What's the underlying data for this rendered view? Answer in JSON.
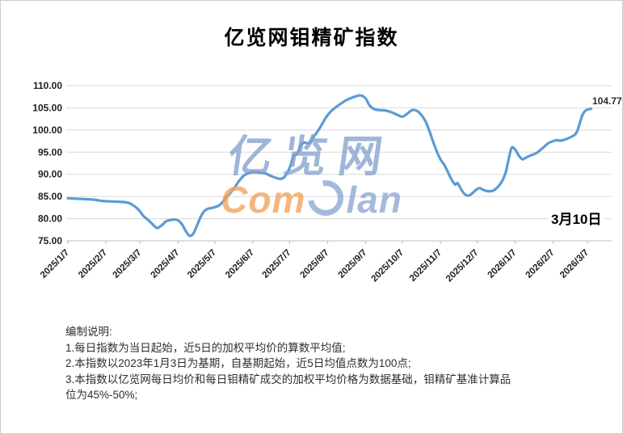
{
  "title": "亿览网钼精矿指数",
  "watermark": {
    "line1": "亿览网",
    "brand_com": "Com",
    "brand_lan": "lan",
    "e_icon": "comelan-e-swoosh"
  },
  "annotation_date": "3月10日",
  "notes": {
    "lines": [
      "编制说明:",
      "1.每日指数为当日起始，近5日的加权平均价的算数平均值;",
      "2.本指数以2023年1月3日为基期，自基期起始，近5日均值点数为100点;",
      "3.本指数以亿览网每日均价和每日钼精矿成交的加权平均价格为数据基础，钼精矿基准计算品",
      "位为45%-50%;"
    ]
  },
  "colors": {
    "line": "#5B9BD5",
    "gridline": "#D9D9D9",
    "axis": "#BFBFBF",
    "tick_label": "#1f1f1f",
    "watermark_blue": "rgba(143,168,212,0.8)",
    "watermark_orange": "rgba(243,163,94,0.8)"
  },
  "chart_data": {
    "type": "line",
    "title": "亿览网钼精矿指数",
    "xlabel": "",
    "ylabel": "",
    "ylim": [
      75,
      110
    ],
    "grid": "horizontal",
    "legend": "none",
    "line_color": "#5B9BD5",
    "smooth": true,
    "ytick_labels": [
      "110.00",
      "105.00",
      "100.00",
      "95.00",
      "90.00",
      "85.00",
      "80.00",
      "75.00"
    ],
    "ytick_values": [
      110,
      105,
      100,
      95,
      90,
      85,
      80,
      75
    ],
    "xticks": [
      "2025/1/7",
      "2025/2/7",
      "2025/3/7",
      "2025/4/7",
      "2025/5/7",
      "2025/6/7",
      "2025/7/7",
      "2025/8/7",
      "2025/9/7",
      "2025/10/7",
      "2025/11/7",
      "2025/12/7",
      "2026/1/7",
      "2026/2/7",
      "2026/3/7"
    ],
    "x_axis_start": "2025/1/7",
    "x_axis_end": "2026/3/7",
    "last_point_label": "104.77",
    "last_point_date": "3月10日",
    "series": [
      {
        "name": "钼精矿指数",
        "points": [
          [
            "2025/1/7",
            84.6
          ],
          [
            "2025/1/14",
            84.5
          ],
          [
            "2025/1/21",
            84.4
          ],
          [
            "2025/1/28",
            84.3
          ],
          [
            "2025/2/4",
            84.0
          ],
          [
            "2025/2/11",
            83.9
          ],
          [
            "2025/2/18",
            83.8
          ],
          [
            "2025/2/25",
            83.6
          ],
          [
            "2025/3/2",
            82.9
          ],
          [
            "2025/3/6",
            81.9
          ],
          [
            "2025/3/10",
            80.5
          ],
          [
            "2025/3/14",
            79.6
          ],
          [
            "2025/3/18",
            78.5
          ],
          [
            "2025/3/21",
            77.9
          ],
          [
            "2025/3/25",
            78.6
          ],
          [
            "2025/3/28",
            79.4
          ],
          [
            "2025/4/1",
            79.7
          ],
          [
            "2025/4/4",
            79.8
          ],
          [
            "2025/4/7",
            79.6
          ],
          [
            "2025/4/10",
            78.8
          ],
          [
            "2025/4/13",
            77.3
          ],
          [
            "2025/4/16",
            76.2
          ],
          [
            "2025/4/19",
            76.5
          ],
          [
            "2025/4/22",
            78.2
          ],
          [
            "2025/4/25",
            80.2
          ],
          [
            "2025/4/28",
            81.6
          ],
          [
            "2025/5/1",
            82.2
          ],
          [
            "2025/5/4",
            82.4
          ],
          [
            "2025/5/7",
            82.6
          ],
          [
            "2025/5/11",
            83.1
          ],
          [
            "2025/5/15",
            84.4
          ],
          [
            "2025/5/19",
            85.6
          ],
          [
            "2025/5/23",
            87.0
          ],
          [
            "2025/5/27",
            88.6
          ],
          [
            "2025/5/31",
            89.8
          ],
          [
            "2025/6/4",
            90.3
          ],
          [
            "2025/6/7",
            90.5
          ],
          [
            "2025/6/12",
            90.4
          ],
          [
            "2025/6/17",
            90.2
          ],
          [
            "2025/6/22",
            89.6
          ],
          [
            "2025/6/27",
            89.1
          ],
          [
            "2025/6/30",
            89.0
          ],
          [
            "2025/7/3",
            89.5
          ],
          [
            "2025/7/7",
            91.5
          ],
          [
            "2025/7/10",
            94.0
          ],
          [
            "2025/7/13",
            94.6
          ],
          [
            "2025/7/16",
            96.5
          ],
          [
            "2025/7/19",
            97.2
          ],
          [
            "2025/7/23",
            97.0
          ],
          [
            "2025/7/27",
            98.6
          ],
          [
            "2025/7/31",
            100.2
          ],
          [
            "2025/8/3",
            101.6
          ],
          [
            "2025/8/6",
            103.0
          ],
          [
            "2025/8/10",
            104.3
          ],
          [
            "2025/8/14",
            105.2
          ],
          [
            "2025/8/18",
            106.0
          ],
          [
            "2025/8/22",
            106.7
          ],
          [
            "2025/8/26",
            107.2
          ],
          [
            "2025/8/30",
            107.6
          ],
          [
            "2025/9/3",
            107.8
          ],
          [
            "2025/9/7",
            107.1
          ],
          [
            "2025/9/10",
            105.6
          ],
          [
            "2025/9/14",
            104.7
          ],
          [
            "2025/9/18",
            104.5
          ],
          [
            "2025/9/23",
            104.4
          ],
          [
            "2025/9/28",
            104.0
          ],
          [
            "2025/10/3",
            103.4
          ],
          [
            "2025/10/7",
            103.0
          ],
          [
            "2025/10/11",
            103.7
          ],
          [
            "2025/10/15",
            104.5
          ],
          [
            "2025/10/19",
            104.3
          ],
          [
            "2025/10/23",
            103.2
          ],
          [
            "2025/10/26",
            101.9
          ],
          [
            "2025/10/29",
            99.8
          ],
          [
            "2025/11/1",
            97.4
          ],
          [
            "2025/11/4",
            95.2
          ],
          [
            "2025/11/7",
            93.4
          ],
          [
            "2025/11/10",
            92.2
          ],
          [
            "2025/11/13",
            90.6
          ],
          [
            "2025/11/16",
            88.9
          ],
          [
            "2025/11/19",
            87.7
          ],
          [
            "2025/11/21",
            88.0
          ],
          [
            "2025/11/24",
            86.6
          ],
          [
            "2025/11/27",
            85.5
          ],
          [
            "2025/11/30",
            85.2
          ],
          [
            "2025/12/3",
            85.7
          ],
          [
            "2025/12/6",
            86.5
          ],
          [
            "2025/12/9",
            86.9
          ],
          [
            "2025/12/12",
            86.5
          ],
          [
            "2025/12/16",
            86.2
          ],
          [
            "2025/12/20",
            86.3
          ],
          [
            "2025/12/24",
            87.2
          ],
          [
            "2025/12/27",
            88.3
          ],
          [
            "2025/12/30",
            90.2
          ],
          [
            "2026/1/1",
            92.5
          ],
          [
            "2026/1/4",
            95.9
          ],
          [
            "2026/1/7",
            95.6
          ],
          [
            "2026/1/10",
            94.2
          ],
          [
            "2026/1/13",
            93.4
          ],
          [
            "2026/1/16",
            93.8
          ],
          [
            "2026/1/19",
            94.2
          ],
          [
            "2026/1/22",
            94.5
          ],
          [
            "2026/1/25",
            94.9
          ],
          [
            "2026/1/28",
            95.6
          ],
          [
            "2026/1/31",
            96.3
          ],
          [
            "2026/2/3",
            97.0
          ],
          [
            "2026/2/7",
            97.5
          ],
          [
            "2026/2/10",
            97.7
          ],
          [
            "2026/2/13",
            97.6
          ],
          [
            "2026/2/16",
            97.8
          ],
          [
            "2026/2/19",
            98.1
          ],
          [
            "2026/2/22",
            98.5
          ],
          [
            "2026/2/25",
            99.0
          ],
          [
            "2026/2/27",
            100.0
          ],
          [
            "2026/3/1",
            101.8
          ],
          [
            "2026/3/3",
            103.4
          ],
          [
            "2026/3/5",
            104.3
          ],
          [
            "2026/3/7",
            104.6
          ],
          [
            "2026/3/10",
            104.77
          ]
        ]
      }
    ]
  }
}
